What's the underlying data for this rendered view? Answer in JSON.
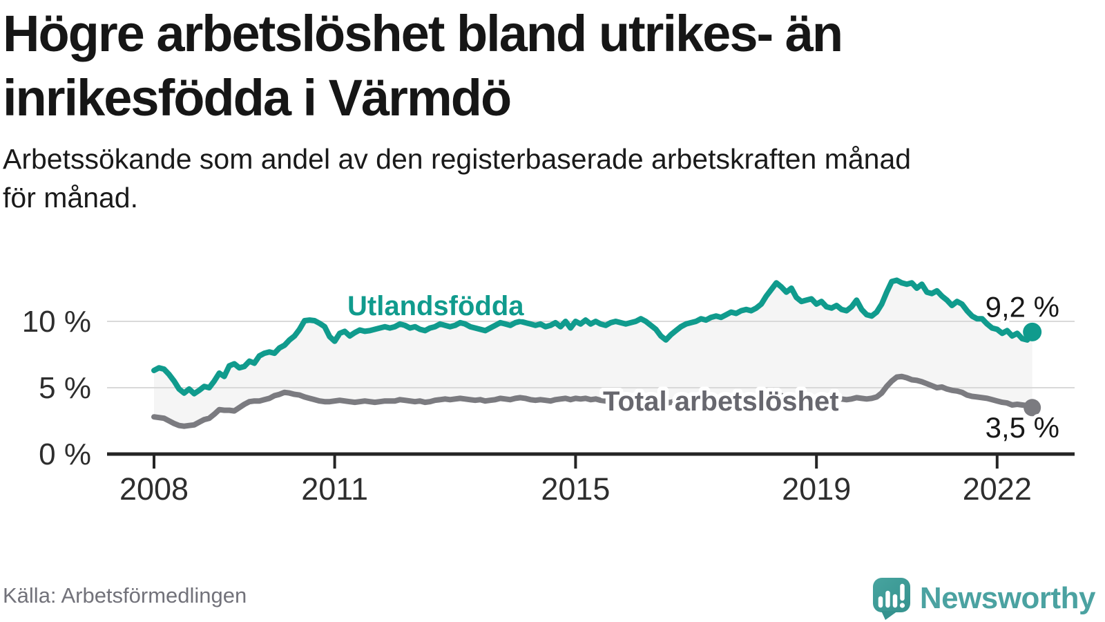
{
  "header": {
    "title_lines": [
      "Högre arbetslöshet bland utrikes- än",
      "inrikesfödda i Värmdö"
    ],
    "subtitle_lines": [
      "Arbetssökande som andel av den registerbaserade arbetskraften månad",
      "för månad."
    ]
  },
  "footer": {
    "source": "Källa: Arbetsförmedlingen",
    "brand": "Newsworthy"
  },
  "chart_data": {
    "type": "line",
    "title": "Högre arbetslöshet bland utrikes- än inrikesfödda i Värmdö",
    "x_unit": "month",
    "x_start": "2008-01",
    "x_end": "2022-08",
    "x_ticks": [
      2008,
      2011,
      2015,
      2019,
      2022
    ],
    "y_ticks": [
      {
        "value": 0,
        "label": "0 %"
      },
      {
        "value": 5,
        "label": "5 %"
      },
      {
        "value": 10,
        "label": "10 %"
      }
    ],
    "ylim": [
      0,
      13.8
    ],
    "grid": "horizontal",
    "band_fill_between_series": "#f5f5f5",
    "colors": {
      "accent_teal": "#109b8d",
      "line_gray": "#7b7b80",
      "label_gray": "#67676e",
      "axis": "#252525",
      "gridline": "#d9d9d9",
      "value_label": "#181818"
    },
    "series": [
      {
        "name": "Utlandsfödda",
        "color": "#109b8d",
        "end_label": "9,2 %",
        "end_value": 9.2,
        "values": [
          6.3,
          6.5,
          6.4,
          6.0,
          5.5,
          4.9,
          4.6,
          4.9,
          4.55,
          4.8,
          5.1,
          5.0,
          5.5,
          6.1,
          5.85,
          6.65,
          6.8,
          6.5,
          6.6,
          7.0,
          6.85,
          7.4,
          7.6,
          7.7,
          7.6,
          8.0,
          8.2,
          8.6,
          8.9,
          9.4,
          10.05,
          10.1,
          10.05,
          9.85,
          9.6,
          8.85,
          8.5,
          9.1,
          9.25,
          8.9,
          9.15,
          9.35,
          9.25,
          9.3,
          9.4,
          9.5,
          9.6,
          9.5,
          9.6,
          9.8,
          9.7,
          9.5,
          9.6,
          9.4,
          9.3,
          9.5,
          9.6,
          9.8,
          9.7,
          9.6,
          9.7,
          9.9,
          9.8,
          9.6,
          9.5,
          9.4,
          9.3,
          9.5,
          9.7,
          9.9,
          9.8,
          9.7,
          9.9,
          10.0,
          9.9,
          9.8,
          9.7,
          9.8,
          9.6,
          9.7,
          9.9,
          9.6,
          10.0,
          9.5,
          10.0,
          9.8,
          10.1,
          9.8,
          10.0,
          9.8,
          9.7,
          9.9,
          10.0,
          9.9,
          9.8,
          9.9,
          10.0,
          10.2,
          10.0,
          9.7,
          9.4,
          8.9,
          8.6,
          9.0,
          9.3,
          9.6,
          9.8,
          9.9,
          10.0,
          10.2,
          10.1,
          10.3,
          10.4,
          10.3,
          10.5,
          10.7,
          10.6,
          10.8,
          10.9,
          10.8,
          11.0,
          11.3,
          11.9,
          12.4,
          12.9,
          12.6,
          12.2,
          12.5,
          11.8,
          11.5,
          11.6,
          11.7,
          11.3,
          11.5,
          11.1,
          11.0,
          11.2,
          10.9,
          10.8,
          11.1,
          11.6,
          10.9,
          10.5,
          10.4,
          10.7,
          11.3,
          12.2,
          13.0,
          13.1,
          12.9,
          12.8,
          12.9,
          12.5,
          12.8,
          12.2,
          12.1,
          12.3,
          11.9,
          11.6,
          11.2,
          11.5,
          11.3,
          10.8,
          10.4,
          10.2,
          10.2,
          9.8,
          9.5,
          9.4,
          9.1,
          9.3,
          8.9,
          9.1,
          8.7,
          8.6,
          9.2
        ]
      },
      {
        "name": "Total arbetslöshet",
        "color": "#7b7b80",
        "end_label": "3,5 %",
        "end_value": 3.5,
        "values": [
          2.8,
          2.75,
          2.7,
          2.5,
          2.3,
          2.15,
          2.1,
          2.15,
          2.2,
          2.4,
          2.6,
          2.7,
          3.0,
          3.35,
          3.3,
          3.3,
          3.25,
          3.5,
          3.75,
          3.95,
          4.0,
          4.0,
          4.1,
          4.2,
          4.4,
          4.5,
          4.65,
          4.6,
          4.5,
          4.45,
          4.3,
          4.2,
          4.1,
          4.0,
          3.95,
          3.95,
          4.0,
          4.05,
          4.0,
          3.95,
          3.9,
          3.95,
          4.0,
          3.95,
          3.9,
          3.95,
          4.0,
          4.0,
          4.0,
          4.1,
          4.05,
          4.0,
          3.95,
          4.0,
          3.9,
          3.95,
          4.05,
          4.1,
          4.15,
          4.1,
          4.15,
          4.2,
          4.15,
          4.1,
          4.05,
          4.1,
          4.0,
          4.05,
          4.1,
          4.2,
          4.15,
          4.1,
          4.2,
          4.25,
          4.2,
          4.1,
          4.05,
          4.1,
          4.05,
          4.0,
          4.1,
          4.15,
          4.2,
          4.1,
          4.2,
          4.15,
          4.2,
          4.1,
          4.15,
          4.05,
          4.0,
          4.1,
          4.15,
          4.1,
          4.05,
          4.1,
          4.1,
          4.15,
          4.1,
          4.0,
          3.95,
          3.9,
          3.85,
          3.9,
          4.0,
          4.05,
          4.1,
          4.1,
          4.1,
          4.15,
          4.1,
          4.15,
          4.2,
          4.15,
          4.1,
          4.2,
          4.25,
          4.2,
          4.25,
          4.2,
          4.25,
          4.3,
          4.35,
          4.4,
          4.45,
          4.4,
          4.3,
          4.35,
          4.3,
          4.25,
          4.3,
          4.25,
          4.2,
          4.25,
          4.2,
          4.15,
          4.2,
          4.15,
          4.1,
          4.15,
          4.25,
          4.2,
          4.15,
          4.2,
          4.3,
          4.6,
          5.1,
          5.5,
          5.8,
          5.85,
          5.75,
          5.6,
          5.55,
          5.45,
          5.3,
          5.15,
          5.0,
          5.05,
          4.9,
          4.8,
          4.75,
          4.65,
          4.45,
          4.35,
          4.3,
          4.25,
          4.2,
          4.1,
          4.0,
          3.9,
          3.85,
          3.7,
          3.75,
          3.7,
          3.65,
          3.5
        ]
      }
    ],
    "legend_position": "inline-labels"
  }
}
